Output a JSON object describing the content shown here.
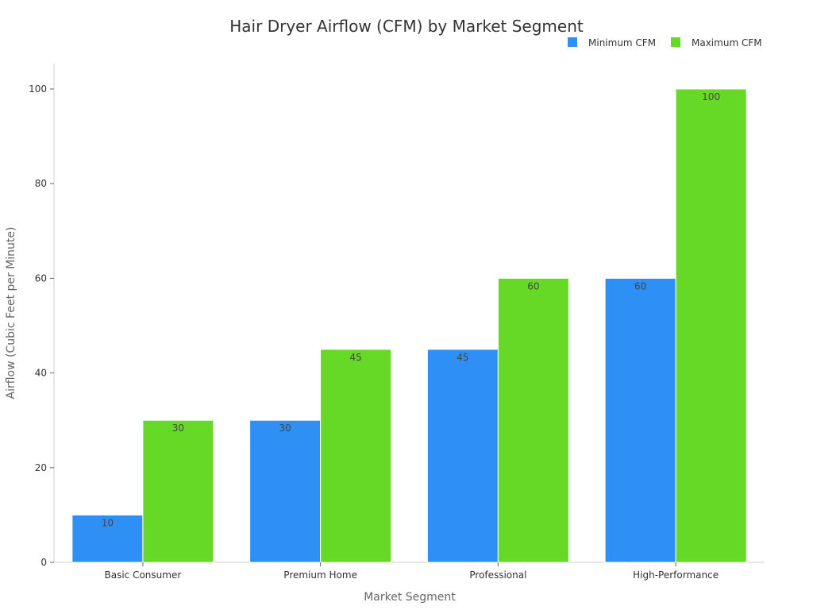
{
  "chart_data": {
    "type": "bar",
    "title": "Hair Dryer Airflow (CFM) by Market Segment",
    "xlabel": "Market Segment",
    "ylabel": "Airflow (Cubic Feet per Minute)",
    "categories": [
      "Basic Consumer",
      "Premium Home",
      "Professional",
      "High-Performance"
    ],
    "series": [
      {
        "name": "Minimum CFM",
        "color": "#2e8ff5",
        "values": [
          10,
          30,
          45,
          60
        ]
      },
      {
        "name": "Maximum CFM",
        "color": "#66d926",
        "values": [
          30,
          45,
          60,
          100
        ]
      }
    ],
    "ylim": [
      0,
      105
    ],
    "yticks": [
      0,
      20,
      40,
      60,
      80,
      100
    ],
    "grid": false,
    "legend_position": "top-right",
    "data_labels": true
  }
}
